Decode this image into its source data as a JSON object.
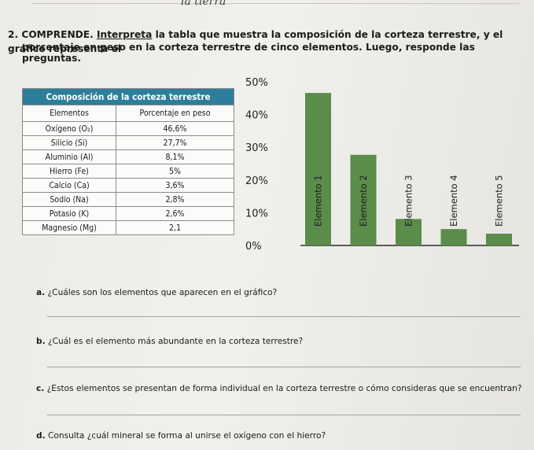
{
  "top_note": "la tierra",
  "exercise": {
    "number": "2.",
    "keyword": "COMPRENDE.",
    "prompt_underlined": "Interpreta",
    "prompt_line1": "la tabla que muestra la composición de la corteza terrestre, y el gráfico representa el",
    "prompt_line2": "porcentaje en peso en la corteza terrestre de cinco elementos. Luego, responde las preguntas."
  },
  "table": {
    "title": "Composición de la corteza terrestre",
    "headers": [
      "Elementos",
      "Porcentaje en peso"
    ],
    "rows": [
      {
        "element": "Oxígeno (O₂)",
        "percent": "46,6%"
      },
      {
        "element": "Silicio (Si)",
        "percent": "27,7%"
      },
      {
        "element": "Aluminio (Al)",
        "percent": "8,1%"
      },
      {
        "element": "Hierro (Fe)",
        "percent": "5%"
      },
      {
        "element": "Calcio (Ca)",
        "percent": "3,6%"
      },
      {
        "element": "Sodio (Na)",
        "percent": "2,8%"
      },
      {
        "element": "Potasio (K)",
        "percent": "2,6%"
      },
      {
        "element": "Magnesio (Mg)",
        "percent": "2,1"
      }
    ]
  },
  "chart_data": {
    "type": "bar",
    "categories": [
      "Elemento 1",
      "Elemento 2",
      "Elemento 3",
      "Elemento 4",
      "Elemento 5"
    ],
    "values": [
      46.6,
      27.7,
      8.1,
      5,
      3.6
    ],
    "yticks": [
      "0%",
      "10%",
      "20%",
      "30%",
      "40%",
      "50%"
    ],
    "ylim": [
      0,
      50
    ],
    "bar_color": "#5a8c4a",
    "label_orientation": "vertical"
  },
  "questions": [
    {
      "letter": "a.",
      "text": "¿Cuáles son los elementos que aparecen en el gráfico?"
    },
    {
      "letter": "b.",
      "text": "¿Cuál es el elemento más abundante en la corteza terrestre?"
    },
    {
      "letter": "c.",
      "text": "¿Estos elementos se presentan de forma individual en la corteza terrestre o cómo consideras que se encuentran?"
    },
    {
      "letter": "d.",
      "text": "Consulta ¿cuál mineral se forma al unirse el oxígeno con el hierro?"
    }
  ]
}
